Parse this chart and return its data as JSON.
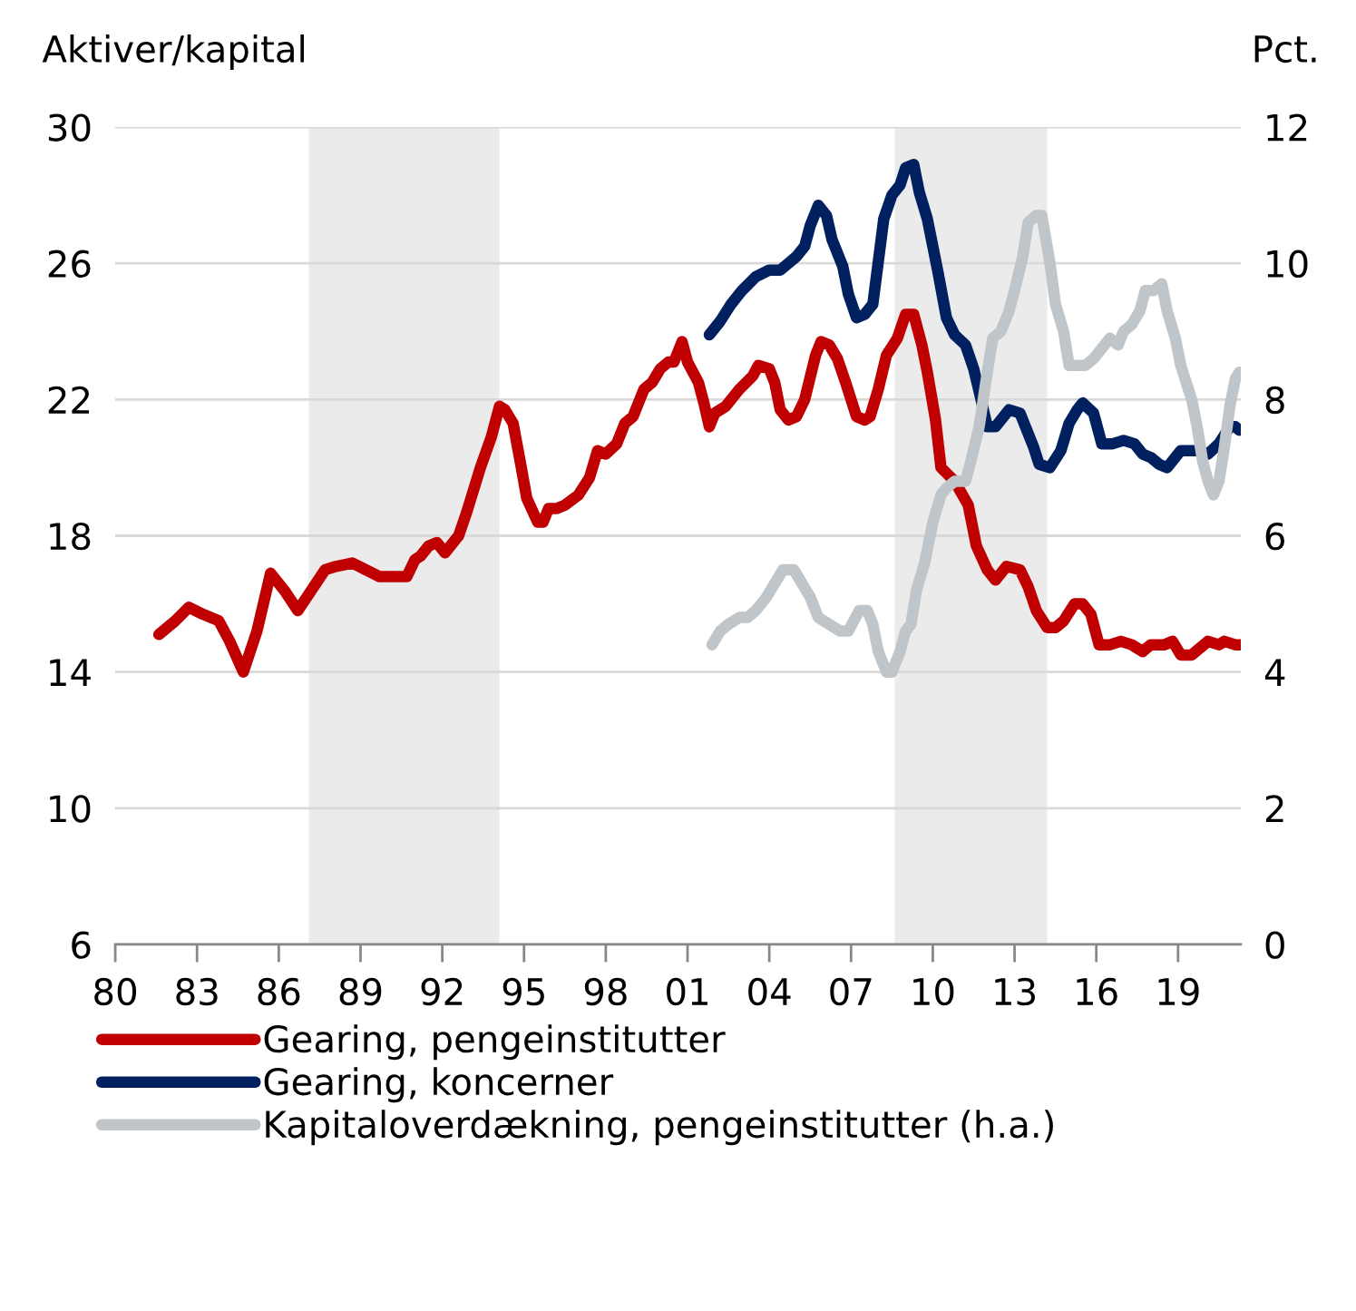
{
  "chart_data": {
    "type": "line",
    "ylabel": "Aktiver/kapital",
    "y2label": "Pct.",
    "xlim": [
      1980,
      2021.3
    ],
    "ylim": [
      6,
      30
    ],
    "y2lim": [
      0,
      12
    ],
    "yticks": [
      6,
      10,
      14,
      18,
      22,
      26,
      30
    ],
    "y2ticks": [
      0,
      2,
      4,
      6,
      8,
      10,
      12
    ],
    "xticks": [
      {
        "value": 1980,
        "label": "80"
      },
      {
        "value": 1983,
        "label": "83"
      },
      {
        "value": 1986,
        "label": "86"
      },
      {
        "value": 1989,
        "label": "89"
      },
      {
        "value": 1992,
        "label": "92"
      },
      {
        "value": 1995,
        "label": "95"
      },
      {
        "value": 1998,
        "label": "98"
      },
      {
        "value": 2001,
        "label": "01"
      },
      {
        "value": 2004,
        "label": "04"
      },
      {
        "value": 2007,
        "label": "07"
      },
      {
        "value": 2010,
        "label": "10"
      },
      {
        "value": 2013,
        "label": "13"
      },
      {
        "value": 2016,
        "label": "16"
      },
      {
        "value": 2019,
        "label": "19"
      }
    ],
    "grid": "y",
    "legend": "bottom",
    "bands": [
      {
        "axis": "x",
        "from": 1987.1,
        "to": 1994.1,
        "color": "#ebebeb"
      },
      {
        "axis": "x",
        "from": 2008.6,
        "to": 2014.2,
        "color": "#ebebeb"
      }
    ],
    "series": [
      {
        "name": "Gearing, pengeinstitutter",
        "color": "#c00000",
        "x": [
          1981.6,
          1982.2,
          1982.7,
          1983.2,
          1983.8,
          1984.2,
          1984.7,
          1985.2,
          1985.7,
          1986.2,
          1986.7,
          1987.2,
          1987.7,
          1988.1,
          1988.7,
          1989.2,
          1989.7,
          1990.2,
          1990.7,
          1991.0,
          1991.2,
          1991.5,
          1991.8,
          1992.1,
          1992.6,
          1992.9,
          1993.4,
          1993.8,
          1994.1,
          1994.3,
          1994.6,
          1994.9,
          1995.1,
          1995.5,
          1995.7,
          1995.9,
          1996.2,
          1996.5,
          1997.0,
          1997.4,
          1997.7,
          1998.0,
          1998.4,
          1998.7,
          1999.0,
          1999.4,
          1999.7,
          2000.0,
          2000.3,
          2000.5,
          2000.8,
          2001.0,
          2001.4,
          2001.6,
          2001.8,
          2002.0,
          2002.4,
          2002.9,
          2003.4,
          2003.6,
          2004.0,
          2004.2,
          2004.4,
          2004.7,
          2005.0,
          2005.3,
          2005.7,
          2005.9,
          2006.2,
          2006.5,
          2006.8,
          2007.2,
          2007.5,
          2007.7,
          2008.0,
          2008.3,
          2008.7,
          2009.0,
          2009.3,
          2009.6,
          2009.8,
          2010.1,
          2010.3,
          2010.8,
          2011.3,
          2011.6,
          2012.0,
          2012.3,
          2012.7,
          2013.2,
          2013.5,
          2013.8,
          2014.2,
          2014.5,
          2014.8,
          2015.2,
          2015.5,
          2015.8,
          2016.1,
          2016.5,
          2016.9,
          2017.3,
          2017.7,
          2018.0,
          2018.5,
          2018.8,
          2019.1,
          2019.5,
          2019.8,
          2020.1,
          2020.5,
          2020.7,
          2021.1,
          2021.25
        ],
        "values": [
          15.1,
          15.5,
          15.9,
          15.7,
          15.5,
          14.9,
          14.0,
          15.2,
          16.9,
          16.4,
          15.8,
          16.4,
          17.0,
          17.1,
          17.2,
          17.0,
          16.8,
          16.8,
          16.8,
          17.3,
          17.4,
          17.7,
          17.8,
          17.5,
          18.0,
          18.7,
          20.0,
          20.9,
          21.8,
          21.7,
          21.3,
          20.0,
          19.1,
          18.4,
          18.4,
          18.8,
          18.8,
          18.9,
          19.2,
          19.7,
          20.5,
          20.4,
          20.7,
          21.3,
          21.5,
          22.3,
          22.5,
          22.9,
          23.1,
          23.1,
          23.7,
          23.1,
          22.5,
          21.9,
          21.2,
          21.6,
          21.8,
          22.3,
          22.7,
          23.0,
          22.9,
          22.5,
          21.7,
          21.4,
          21.5,
          22.0,
          23.3,
          23.7,
          23.6,
          23.2,
          22.5,
          21.5,
          21.4,
          21.5,
          22.3,
          23.3,
          23.8,
          24.5,
          24.5,
          23.6,
          22.8,
          21.4,
          20.0,
          19.6,
          18.9,
          17.7,
          17.0,
          16.7,
          17.1,
          17.0,
          16.5,
          15.8,
          15.3,
          15.3,
          15.5,
          16.0,
          16.0,
          15.7,
          14.8,
          14.8,
          14.9,
          14.8,
          14.6,
          14.8,
          14.8,
          14.9,
          14.5,
          14.5,
          14.7,
          14.9,
          14.8,
          14.9,
          14.8,
          14.8
        ]
      },
      {
        "name": "Gearing, koncerner",
        "color": "#002060",
        "x": [
          2001.8,
          2002.2,
          2002.6,
          2003.0,
          2003.5,
          2004.0,
          2004.4,
          2004.7,
          2005.0,
          2005.3,
          2005.5,
          2005.8,
          2006.1,
          2006.3,
          2006.7,
          2006.9,
          2007.2,
          2007.5,
          2007.8,
          2008.2,
          2008.5,
          2008.8,
          2009.0,
          2009.3,
          2009.5,
          2009.8,
          2010.2,
          2010.5,
          2010.8,
          2011.2,
          2011.5,
          2011.8,
          2012.0,
          2012.3,
          2012.6,
          2012.8,
          2013.2,
          2013.4,
          2013.7,
          2013.9,
          2014.3,
          2014.7,
          2015.0,
          2015.3,
          2015.5,
          2015.9,
          2016.2,
          2016.6,
          2017.0,
          2017.4,
          2017.7,
          2018.0,
          2018.3,
          2018.6,
          2018.9,
          2019.1,
          2019.5,
          2019.8,
          2020.1,
          2020.5,
          2020.9,
          2021.1,
          2021.25
        ],
        "values": [
          23.9,
          24.3,
          24.8,
          25.2,
          25.6,
          25.8,
          25.8,
          26.0,
          26.2,
          26.5,
          27.1,
          27.7,
          27.4,
          26.7,
          25.9,
          25.1,
          24.4,
          24.5,
          24.8,
          27.3,
          28.0,
          28.3,
          28.8,
          28.9,
          28.1,
          27.3,
          25.7,
          24.4,
          23.9,
          23.6,
          22.9,
          21.9,
          21.2,
          21.2,
          21.5,
          21.7,
          21.6,
          21.2,
          20.6,
          20.1,
          20.0,
          20.5,
          21.3,
          21.7,
          21.9,
          21.6,
          20.7,
          20.7,
          20.8,
          20.7,
          20.4,
          20.3,
          20.1,
          20.0,
          20.3,
          20.5,
          20.5,
          20.5,
          20.4,
          20.7,
          21.2,
          21.2,
          21.1
        ]
      },
      {
        "name": "Kapitaloverdækning, pengeinstitutter (h.a.)",
        "color": "#bfc5c9",
        "axis": "y2",
        "x": [
          2001.9,
          2002.2,
          2002.5,
          2002.9,
          2003.2,
          2003.5,
          2003.9,
          2004.2,
          2004.5,
          2004.9,
          2005.2,
          2005.5,
          2005.8,
          2006.2,
          2006.6,
          2006.9,
          2007.3,
          2007.6,
          2007.8,
          2008.0,
          2008.3,
          2008.5,
          2008.8,
          2009.0,
          2009.2,
          2009.4,
          2009.7,
          2010.0,
          2010.3,
          2010.5,
          2010.8,
          2011.2,
          2011.4,
          2011.7,
          2012.0,
          2012.2,
          2012.5,
          2012.8,
          2013.0,
          2013.3,
          2013.5,
          2013.8,
          2014.0,
          2014.3,
          2014.5,
          2014.8,
          2015.0,
          2015.3,
          2015.6,
          2015.9,
          2016.1,
          2016.5,
          2016.8,
          2017.0,
          2017.3,
          2017.6,
          2017.8,
          2018.1,
          2018.4,
          2018.6,
          2018.9,
          2019.1,
          2019.5,
          2019.7,
          2019.9,
          2020.1,
          2020.3,
          2020.5,
          2020.7,
          2020.9,
          2021.1,
          2021.25
        ],
        "values": [
          4.4,
          4.6,
          4.7,
          4.8,
          4.8,
          4.9,
          5.1,
          5.3,
          5.5,
          5.5,
          5.3,
          5.1,
          4.8,
          4.7,
          4.6,
          4.6,
          4.9,
          4.9,
          4.7,
          4.3,
          4.0,
          4.0,
          4.3,
          4.6,
          4.7,
          5.2,
          5.6,
          6.2,
          6.6,
          6.7,
          6.8,
          6.8,
          7.1,
          7.6,
          8.4,
          8.9,
          9.0,
          9.3,
          9.6,
          10.1,
          10.6,
          10.7,
          10.7,
          10.0,
          9.4,
          9.0,
          8.5,
          8.5,
          8.5,
          8.6,
          8.7,
          8.9,
          8.8,
          9.0,
          9.1,
          9.3,
          9.6,
          9.6,
          9.7,
          9.3,
          8.9,
          8.5,
          8.0,
          7.6,
          7.1,
          6.8,
          6.6,
          6.8,
          7.3,
          7.9,
          8.3,
          8.4
        ]
      }
    ]
  }
}
